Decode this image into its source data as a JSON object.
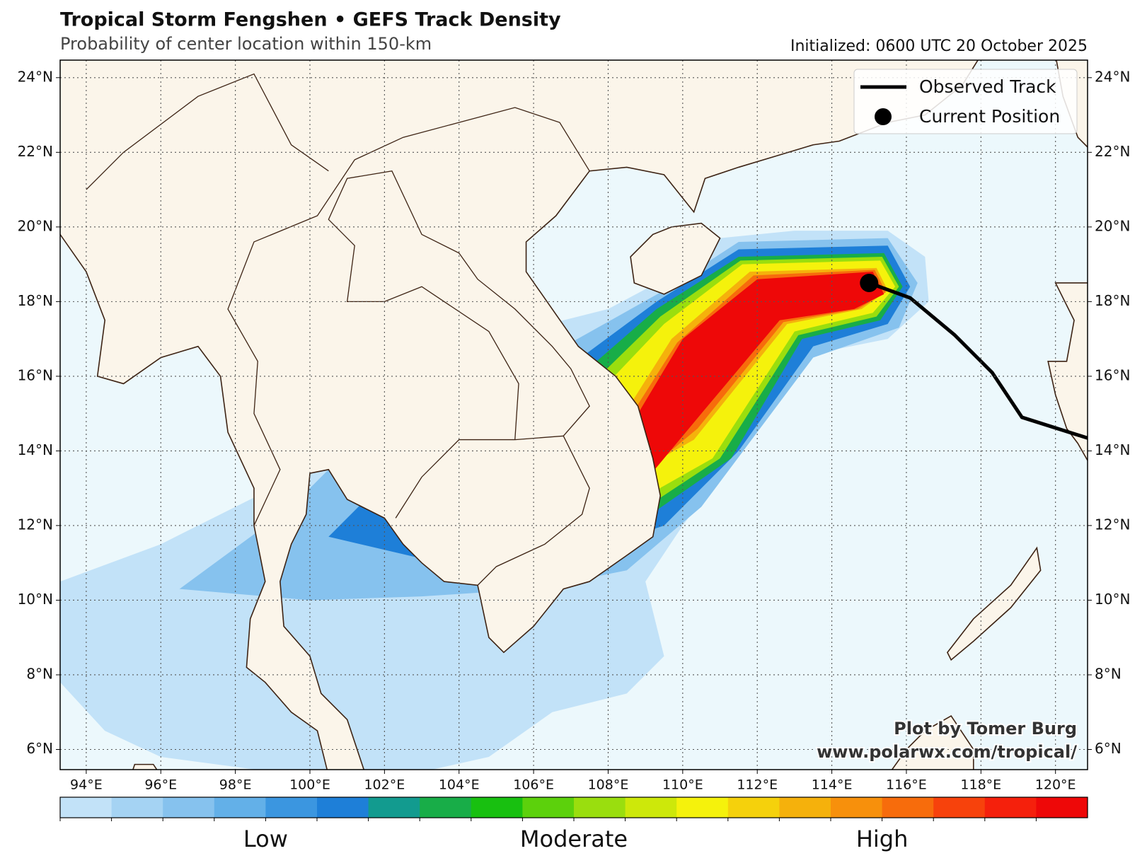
{
  "header": {
    "title": "Tropical Storm Fengshen • GEFS Track Density",
    "subtitle": "Probability of center location within 150-km",
    "initialized": "Initialized: 0600 UTC 20 October 2025"
  },
  "map": {
    "lonlim": [
      93.3,
      120.86
    ],
    "latlim": [
      5.46,
      24.47
    ],
    "grid": true,
    "lon_ticks": [
      {
        "value": 94,
        "label": "94°E"
      },
      {
        "value": 96,
        "label": "96°E"
      },
      {
        "value": 98,
        "label": "98°E"
      },
      {
        "value": 100,
        "label": "100°E"
      },
      {
        "value": 102,
        "label": "102°E"
      },
      {
        "value": 104,
        "label": "104°E"
      },
      {
        "value": 106,
        "label": "106°E"
      },
      {
        "value": 108,
        "label": "108°E"
      },
      {
        "value": 110,
        "label": "110°E"
      },
      {
        "value": 112,
        "label": "112°E"
      },
      {
        "value": 114,
        "label": "114°E"
      },
      {
        "value": 116,
        "label": "116°E"
      },
      {
        "value": 118,
        "label": "118°E"
      },
      {
        "value": 120,
        "label": "120°E"
      }
    ],
    "lat_ticks": [
      {
        "value": 6,
        "label": "6°N"
      },
      {
        "value": 8,
        "label": "8°N"
      },
      {
        "value": 10,
        "label": "10°N"
      },
      {
        "value": 12,
        "label": "12°N"
      },
      {
        "value": 14,
        "label": "14°N"
      },
      {
        "value": 16,
        "label": "16°N"
      },
      {
        "value": 18,
        "label": "18°N"
      },
      {
        "value": 20,
        "label": "20°N"
      },
      {
        "value": 22,
        "label": "22°N"
      },
      {
        "value": 24,
        "label": "24°N"
      }
    ]
  },
  "legend": {
    "items": [
      "Observed Track",
      "Current Position"
    ]
  },
  "colorbar": {
    "colors": [
      "#c2e2f8",
      "#a5d3f3",
      "#86c2ee",
      "#63b0e8",
      "#3b96e0",
      "#1e7fd8",
      "#129b8f",
      "#18ad48",
      "#18c010",
      "#5cd10c",
      "#9ade0e",
      "#cde80a",
      "#f5f20c",
      "#f5d10c",
      "#f5b10c",
      "#f7900c",
      "#f76c0c",
      "#f7420c",
      "#f5200c",
      "#ee0808"
    ],
    "labels": [
      "Low",
      "Moderate",
      "High"
    ]
  },
  "credits": [
    "Plot by Tomer Burg",
    "www.polarwx.com/tropical/"
  ]
}
